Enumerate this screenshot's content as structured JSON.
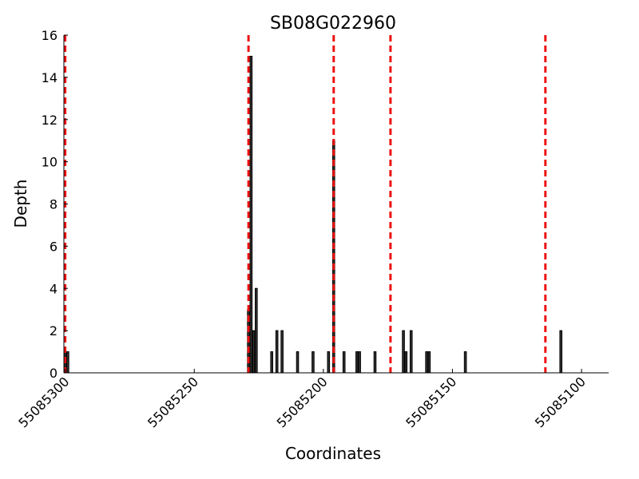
{
  "chart_data": {
    "type": "bar",
    "title": "SB08G022960",
    "xlabel": "Coordinates",
    "ylabel": "Depth",
    "x_reversed": true,
    "xlim": [
      55085300.5,
      55085089.5
    ],
    "ylim": [
      0,
      16
    ],
    "x_ticks": [
      55085300,
      55085250,
      55085200,
      55085150,
      55085100
    ],
    "x_tick_labels": [
      "55085300",
      "55085250",
      "55085200",
      "55085150",
      "55085100"
    ],
    "y_ticks": [
      0,
      2,
      4,
      6,
      8,
      10,
      12,
      14,
      16
    ],
    "y_tick_labels": [
      "0",
      "2",
      "4",
      "6",
      "8",
      "10",
      "12",
      "14",
      "16"
    ],
    "grid": false,
    "bar_color": "#333333",
    "bar_edge_color": "#000000",
    "series": [
      {
        "x": [
          55085300,
          55085299,
          55085229,
          55085228,
          55085227,
          55085226,
          55085220,
          55085218,
          55085216,
          55085210,
          55085204,
          55085198,
          55085196,
          55085192,
          55085187,
          55085186,
          55085180,
          55085169,
          55085168,
          55085166,
          55085160,
          55085159,
          55085145,
          55085108
        ],
        "values": [
          1,
          1,
          3,
          15,
          2,
          4,
          1,
          2,
          2,
          1,
          1,
          1,
          11,
          1,
          1,
          1,
          1,
          2,
          1,
          2,
          1,
          1,
          1,
          2
        ]
      }
    ],
    "reference_lines": {
      "x": [
        55085300,
        55085229,
        55085196,
        55085174,
        55085114
      ],
      "color": "#ee1111",
      "style": "dashed"
    }
  }
}
